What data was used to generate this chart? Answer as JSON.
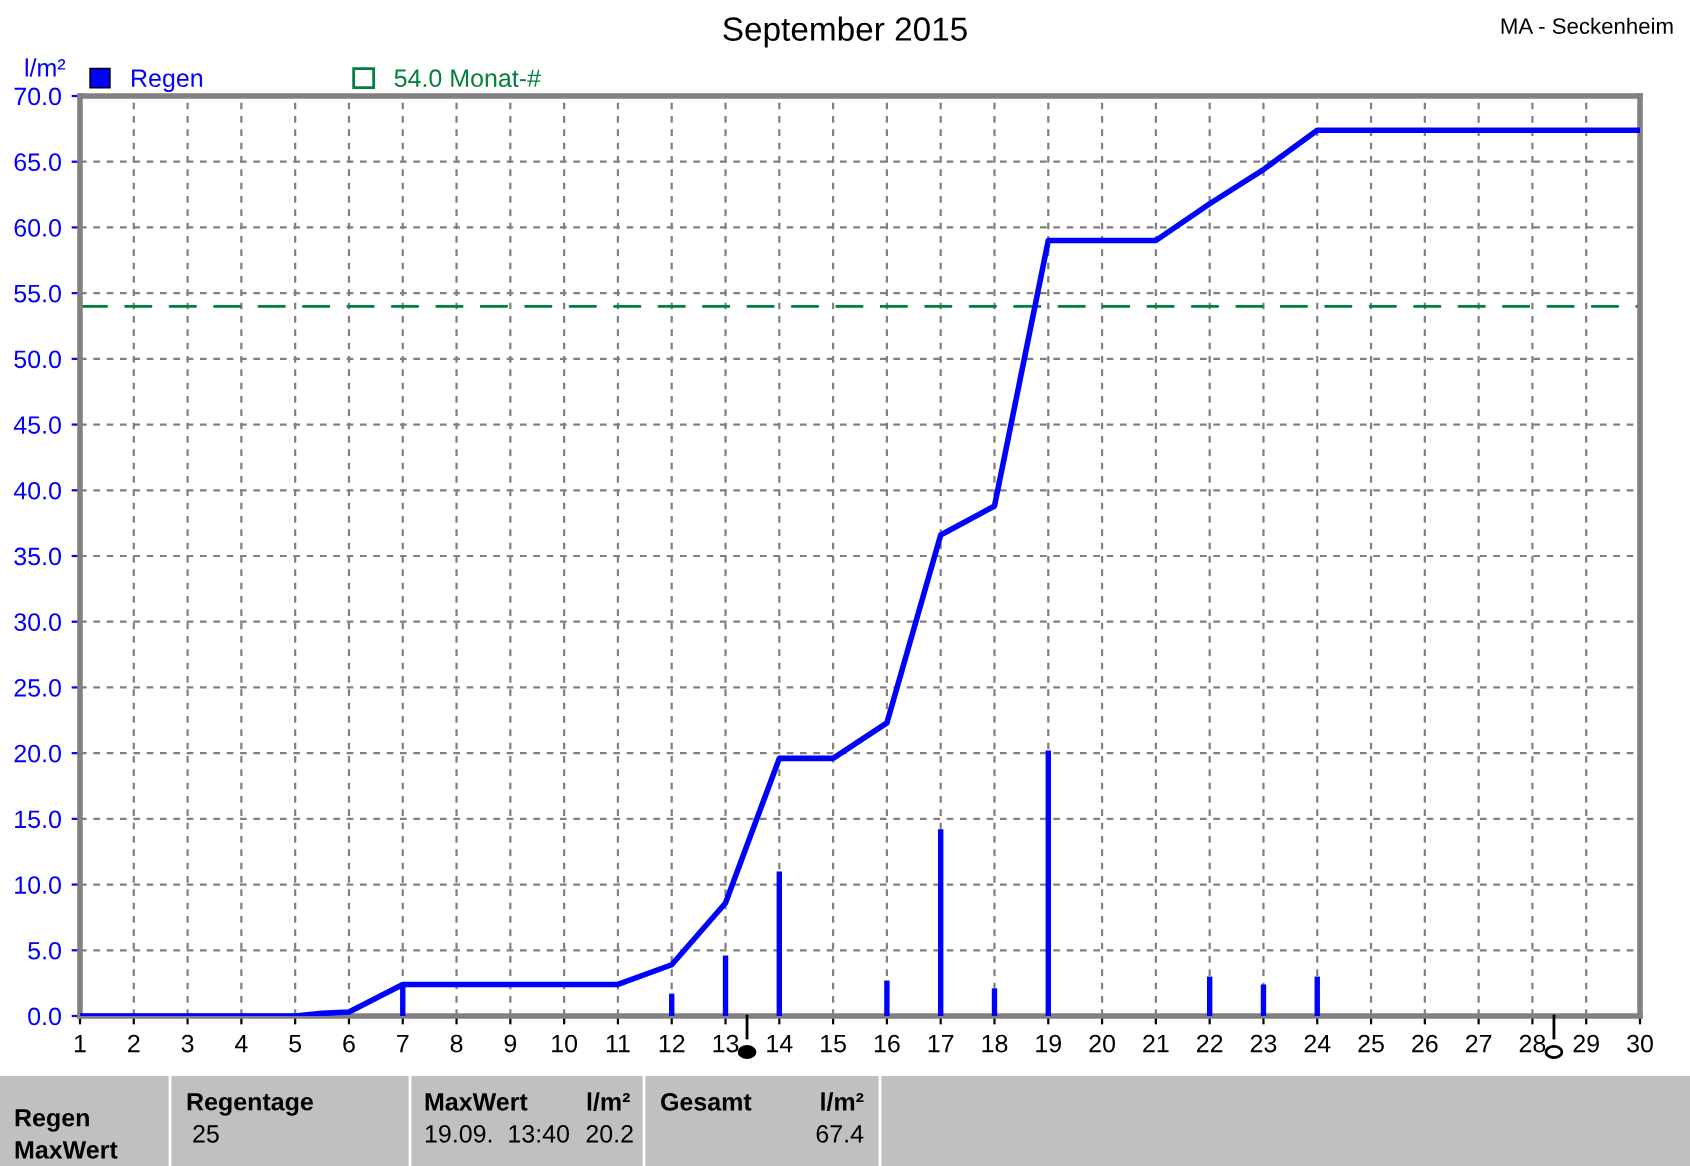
{
  "chart_data": {
    "type": "line",
    "title": "September 2015",
    "ylabel": "l/m²",
    "annotations": [
      "MA - Seckenheim",
      "Regen",
      "MaxWert",
      "Regentage",
      "25",
      "MaxWert",
      "l/m²",
      "19.09.  13:40",
      "20.2",
      "Gesamt",
      "l/m²",
      "67.4"
    ],
    "series": [
      {
        "name": "Regen",
        "type": "bar",
        "color": "#0000ff",
        "x": [
          7,
          12,
          13,
          14,
          16,
          17,
          18,
          19,
          22,
          23,
          24
        ],
        "values": [
          2.4,
          1.7,
          4.6,
          11.0,
          2.7,
          14.2,
          2.1,
          20.2,
          3.0,
          2.4,
          3.0
        ]
      },
      {
        "color": "#0000ff",
        "x": [
          1,
          5,
          5.5,
          6,
          7,
          11,
          12,
          13,
          14,
          15,
          16,
          17,
          18,
          19,
          21,
          22,
          23,
          24,
          30
        ],
        "values": [
          0,
          0,
          0.2,
          0.3,
          2.4,
          2.4,
          3.9,
          8.6,
          19.6,
          19.6,
          22.3,
          36.6,
          38.8,
          59.0,
          59.0,
          61.8,
          64.4,
          67.4,
          67.4
        ]
      }
    ],
    "ref_lines": [
      {
        "axis": "y",
        "value": 54.0,
        "label": "54.0 Monat-#",
        "color": "#007f3f",
        "line_style": "dashed"
      }
    ],
    "xlim": [
      1,
      30
    ],
    "xticks": [
      1,
      2,
      3,
      4,
      5,
      6,
      7,
      8,
      9,
      10,
      11,
      12,
      13,
      14,
      15,
      16,
      17,
      18,
      19,
      20,
      21,
      22,
      23,
      24,
      25,
      26,
      27,
      28,
      29,
      30
    ],
    "ylim": [
      0,
      70
    ],
    "yticks": [
      {
        "value": 0,
        "label": "0.0"
      },
      {
        "value": 5,
        "label": "5.0"
      },
      {
        "value": 10,
        "label": "10.0"
      },
      {
        "value": 15,
        "label": "15.0"
      },
      {
        "value": 20,
        "label": "20.0"
      },
      {
        "value": 25,
        "label": "25.0"
      },
      {
        "value": 30,
        "label": "30.0"
      },
      {
        "value": 35,
        "label": "35.0"
      },
      {
        "value": 40,
        "label": "40.0"
      },
      {
        "value": 45,
        "label": "45.0"
      },
      {
        "value": 50,
        "label": "50.0"
      },
      {
        "value": 55,
        "label": "55.0"
      },
      {
        "value": 60,
        "label": "60.0"
      },
      {
        "value": 65,
        "label": "65.0"
      },
      {
        "value": 70,
        "label": "70.0"
      }
    ],
    "grid": true,
    "legend": "top left",
    "marker": "none",
    "line_style": "solid"
  }
}
